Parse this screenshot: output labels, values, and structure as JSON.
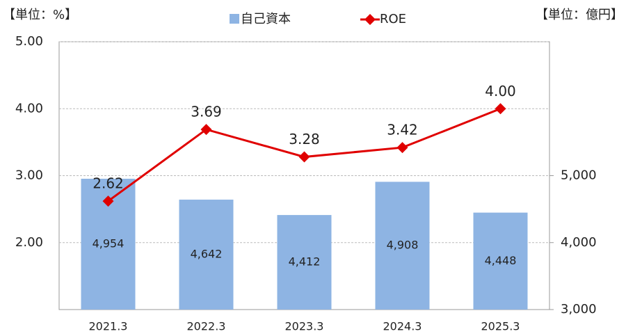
{
  "chart_data": {
    "type": "bar_line",
    "unit_left": "【単位：%】",
    "unit_right": "【単位：億円】",
    "categories": [
      "2021.3",
      "2022.3",
      "2023.3",
      "2024.3",
      "2025.3"
    ],
    "series": [
      {
        "name": "自己資本",
        "type": "bar",
        "axis": "y2",
        "color": "#8eb4e3",
        "values": [
          4954,
          4642,
          4412,
          4908,
          4448
        ],
        "value_labels": [
          "4,954",
          "4,642",
          "4,412",
          "4,908",
          "4,448"
        ]
      },
      {
        "name": "ROE",
        "type": "line",
        "axis": "y",
        "color": "#e00000",
        "values": [
          2.62,
          3.69,
          3.28,
          3.42,
          4.0
        ],
        "value_labels": [
          "2.62",
          "3.69",
          "3.28",
          "3.42",
          "4.00"
        ]
      }
    ],
    "ylim": [
      1,
      5
    ],
    "yticks": [
      {
        "value": 2,
        "label": "2.00"
      },
      {
        "value": 3,
        "label": "3.00"
      },
      {
        "value": 4,
        "label": "4.00"
      },
      {
        "value": 5,
        "label": "5.00"
      }
    ],
    "y2lim": [
      3000,
      7000
    ],
    "y2ticks": [
      {
        "value": 3000,
        "label": "3,000"
      },
      {
        "value": 4000,
        "label": "4,000"
      },
      {
        "value": 5000,
        "label": "5,000"
      }
    ],
    "grid": true
  }
}
